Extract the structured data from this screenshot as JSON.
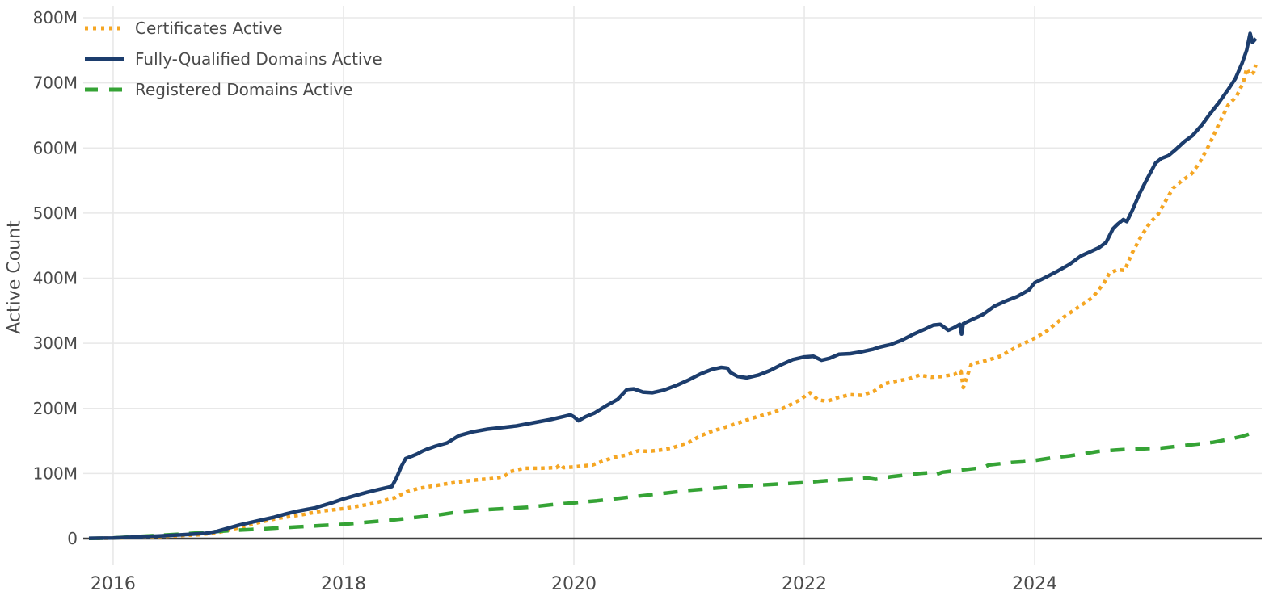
{
  "colors": {
    "background": "#ffffff",
    "gridline": "#e8e8e8",
    "axis_line": "#3d3d3d",
    "text": "#4a4a4a",
    "certificates": "#F5A623",
    "fqdn": "#1C3D6D",
    "registered": "#35A335"
  },
  "legend": {
    "position": "top-left",
    "items": [
      {
        "label": "Certificates Active",
        "swatch": "dotted-orange-line-icon"
      },
      {
        "label": "Fully-Qualified Domains Active",
        "swatch": "solid-navy-line-icon"
      },
      {
        "label": "Registered Domains Active",
        "swatch": "dashed-green-line-icon"
      }
    ]
  },
  "chart_data": {
    "type": "line",
    "title": "",
    "xlabel": "",
    "ylabel": "Active Count",
    "unit": "millions",
    "grid": true,
    "legend_position": "top-left",
    "xlim": [
      2015.79,
      2025.95
    ],
    "ylim": [
      0,
      800
    ],
    "x_ticks": {
      "values": [
        2016,
        2018,
        2020,
        2022,
        2024
      ],
      "labels": [
        "2016",
        "2018",
        "2020",
        "2022",
        "2024"
      ]
    },
    "y_ticks": {
      "values": [
        0,
        100,
        200,
        300,
        400,
        500,
        600,
        700,
        800
      ],
      "labels": [
        "0",
        "100M",
        "200M",
        "300M",
        "400M",
        "500M",
        "600M",
        "700M",
        "800M"
      ]
    },
    "series": [
      {
        "name": "Certificates Active",
        "color": "#F5A623",
        "style": "dotted",
        "points": [
          [
            2015.79,
            0.3
          ],
          [
            2016.0,
            0.8
          ],
          [
            2016.25,
            2
          ],
          [
            2016.5,
            4
          ],
          [
            2016.75,
            6
          ],
          [
            2016.9,
            9
          ],
          [
            2017.0,
            13
          ],
          [
            2017.1,
            17
          ],
          [
            2017.25,
            24
          ],
          [
            2017.4,
            30
          ],
          [
            2017.5,
            33
          ],
          [
            2017.65,
            37
          ],
          [
            2017.8,
            42
          ],
          [
            2017.9,
            44
          ],
          [
            2018.0,
            46
          ],
          [
            2018.1,
            49
          ],
          [
            2018.2,
            52
          ],
          [
            2018.3,
            56
          ],
          [
            2018.45,
            63
          ],
          [
            2018.55,
            72
          ],
          [
            2018.65,
            77
          ],
          [
            2018.75,
            80
          ],
          [
            2018.85,
            83
          ],
          [
            2019.0,
            87
          ],
          [
            2019.15,
            90
          ],
          [
            2019.28,
            92
          ],
          [
            2019.39,
            95
          ],
          [
            2019.45,
            103
          ],
          [
            2019.56,
            108
          ],
          [
            2019.7,
            108
          ],
          [
            2019.85,
            109
          ],
          [
            2019.88,
            114
          ],
          [
            2019.91,
            109
          ],
          [
            2020.0,
            110
          ],
          [
            2020.1,
            112
          ],
          [
            2020.16,
            113
          ],
          [
            2020.25,
            119
          ],
          [
            2020.35,
            125
          ],
          [
            2020.45,
            128
          ],
          [
            2020.56,
            135
          ],
          [
            2020.65,
            134
          ],
          [
            2020.75,
            136
          ],
          [
            2020.85,
            139
          ],
          [
            2021.0,
            148
          ],
          [
            2021.1,
            158
          ],
          [
            2021.2,
            165
          ],
          [
            2021.33,
            172
          ],
          [
            2021.45,
            179
          ],
          [
            2021.55,
            185
          ],
          [
            2021.65,
            190
          ],
          [
            2021.75,
            195
          ],
          [
            2021.85,
            203
          ],
          [
            2021.95,
            212
          ],
          [
            2022.05,
            224
          ],
          [
            2022.12,
            213
          ],
          [
            2022.2,
            211
          ],
          [
            2022.3,
            217
          ],
          [
            2022.4,
            221
          ],
          [
            2022.5,
            220
          ],
          [
            2022.6,
            226
          ],
          [
            2022.7,
            238
          ],
          [
            2022.8,
            242
          ],
          [
            2022.9,
            245
          ],
          [
            2023.0,
            251
          ],
          [
            2023.1,
            248
          ],
          [
            2023.2,
            249
          ],
          [
            2023.3,
            252
          ],
          [
            2023.36,
            257
          ],
          [
            2023.38,
            232
          ],
          [
            2023.45,
            268
          ],
          [
            2023.55,
            272
          ],
          [
            2023.7,
            280
          ],
          [
            2023.85,
            295
          ],
          [
            2024.0,
            308
          ],
          [
            2024.1,
            318
          ],
          [
            2024.25,
            340
          ],
          [
            2024.4,
            358
          ],
          [
            2024.5,
            370
          ],
          [
            2024.6,
            392
          ],
          [
            2024.65,
            408
          ],
          [
            2024.72,
            413
          ],
          [
            2024.78,
            412
          ],
          [
            2024.85,
            440
          ],
          [
            2024.92,
            463
          ],
          [
            2025.0,
            485
          ],
          [
            2025.07,
            498
          ],
          [
            2025.14,
            520
          ],
          [
            2025.2,
            538
          ],
          [
            2025.28,
            550
          ],
          [
            2025.36,
            560
          ],
          [
            2025.43,
            577
          ],
          [
            2025.5,
            600
          ],
          [
            2025.56,
            622
          ],
          [
            2025.62,
            645
          ],
          [
            2025.68,
            666
          ],
          [
            2025.75,
            679
          ],
          [
            2025.81,
            700
          ],
          [
            2025.84,
            722
          ],
          [
            2025.87,
            712
          ],
          [
            2025.9,
            716
          ],
          [
            2025.92,
            728
          ]
        ]
      },
      {
        "name": "Fully-Qualified Domains Active",
        "color": "#1C3D6D",
        "style": "solid",
        "points": [
          [
            2015.79,
            0.5
          ],
          [
            2016.0,
            1
          ],
          [
            2016.2,
            2.5
          ],
          [
            2016.4,
            4
          ],
          [
            2016.6,
            6
          ],
          [
            2016.8,
            8
          ],
          [
            2016.9,
            11
          ],
          [
            2017.0,
            16
          ],
          [
            2017.1,
            21
          ],
          [
            2017.25,
            27
          ],
          [
            2017.4,
            33
          ],
          [
            2017.5,
            38
          ],
          [
            2017.6,
            42
          ],
          [
            2017.75,
            47
          ],
          [
            2017.9,
            55
          ],
          [
            2018.0,
            61
          ],
          [
            2018.1,
            66
          ],
          [
            2018.2,
            71
          ],
          [
            2018.32,
            76
          ],
          [
            2018.42,
            80
          ],
          [
            2018.46,
            93
          ],
          [
            2018.5,
            110
          ],
          [
            2018.54,
            123
          ],
          [
            2018.6,
            127
          ],
          [
            2018.64,
            130
          ],
          [
            2018.68,
            134
          ],
          [
            2018.72,
            137
          ],
          [
            2018.8,
            142
          ],
          [
            2018.9,
            147
          ],
          [
            2019.0,
            158
          ],
          [
            2019.12,
            164
          ],
          [
            2019.25,
            168
          ],
          [
            2019.4,
            171
          ],
          [
            2019.5,
            173
          ],
          [
            2019.65,
            178
          ],
          [
            2019.8,
            183
          ],
          [
            2019.9,
            187
          ],
          [
            2019.97,
            190
          ],
          [
            2020.0,
            187
          ],
          [
            2020.04,
            181
          ],
          [
            2020.1,
            187
          ],
          [
            2020.18,
            193
          ],
          [
            2020.28,
            204
          ],
          [
            2020.38,
            214
          ],
          [
            2020.46,
            229
          ],
          [
            2020.52,
            230
          ],
          [
            2020.6,
            225
          ],
          [
            2020.68,
            224
          ],
          [
            2020.78,
            228
          ],
          [
            2020.9,
            236
          ],
          [
            2021.0,
            244
          ],
          [
            2021.1,
            253
          ],
          [
            2021.2,
            260
          ],
          [
            2021.28,
            263
          ],
          [
            2021.33,
            262
          ],
          [
            2021.36,
            255
          ],
          [
            2021.42,
            249
          ],
          [
            2021.5,
            247
          ],
          [
            2021.6,
            251
          ],
          [
            2021.7,
            258
          ],
          [
            2021.8,
            267
          ],
          [
            2021.9,
            275
          ],
          [
            2022.0,
            279
          ],
          [
            2022.08,
            280
          ],
          [
            2022.15,
            274
          ],
          [
            2022.22,
            277
          ],
          [
            2022.3,
            283
          ],
          [
            2022.4,
            284
          ],
          [
            2022.5,
            287
          ],
          [
            2022.6,
            291
          ],
          [
            2022.65,
            294
          ],
          [
            2022.75,
            298
          ],
          [
            2022.85,
            305
          ],
          [
            2022.95,
            314
          ],
          [
            2023.05,
            322
          ],
          [
            2023.12,
            328
          ],
          [
            2023.18,
            329
          ],
          [
            2023.25,
            320
          ],
          [
            2023.3,
            324
          ],
          [
            2023.35,
            329
          ],
          [
            2023.365,
            314
          ],
          [
            2023.38,
            330
          ],
          [
            2023.45,
            336
          ],
          [
            2023.55,
            344
          ],
          [
            2023.65,
            357
          ],
          [
            2023.75,
            365
          ],
          [
            2023.85,
            372
          ],
          [
            2023.95,
            382
          ],
          [
            2024.0,
            393
          ],
          [
            2024.08,
            400
          ],
          [
            2024.2,
            411
          ],
          [
            2024.3,
            421
          ],
          [
            2024.4,
            434
          ],
          [
            2024.5,
            442
          ],
          [
            2024.56,
            447
          ],
          [
            2024.62,
            455
          ],
          [
            2024.68,
            476
          ],
          [
            2024.72,
            483
          ],
          [
            2024.77,
            490
          ],
          [
            2024.8,
            487
          ],
          [
            2024.85,
            505
          ],
          [
            2024.91,
            530
          ],
          [
            2024.98,
            554
          ],
          [
            2025.05,
            577
          ],
          [
            2025.1,
            584
          ],
          [
            2025.16,
            588
          ],
          [
            2025.22,
            597
          ],
          [
            2025.3,
            610
          ],
          [
            2025.37,
            619
          ],
          [
            2025.45,
            635
          ],
          [
            2025.52,
            652
          ],
          [
            2025.6,
            670
          ],
          [
            2025.68,
            690
          ],
          [
            2025.74,
            706
          ],
          [
            2025.8,
            730
          ],
          [
            2025.84,
            750
          ],
          [
            2025.87,
            776
          ],
          [
            2025.89,
            762
          ],
          [
            2025.92,
            768
          ]
        ]
      },
      {
        "name": "Registered Domains Active",
        "color": "#35A335",
        "style": "dashed",
        "points": [
          [
            2015.79,
            0.3
          ],
          [
            2016.0,
            1
          ],
          [
            2016.2,
            3
          ],
          [
            2016.4,
            5
          ],
          [
            2016.6,
            7
          ],
          [
            2016.8,
            9.5
          ],
          [
            2017.0,
            12
          ],
          [
            2017.2,
            14
          ],
          [
            2017.4,
            16
          ],
          [
            2017.6,
            18
          ],
          [
            2017.8,
            20
          ],
          [
            2018.0,
            22
          ],
          [
            2018.2,
            25
          ],
          [
            2018.4,
            28
          ],
          [
            2018.55,
            31
          ],
          [
            2018.7,
            34
          ],
          [
            2018.85,
            37
          ],
          [
            2019.0,
            41
          ],
          [
            2019.2,
            44
          ],
          [
            2019.4,
            46
          ],
          [
            2019.6,
            48
          ],
          [
            2019.8,
            52
          ],
          [
            2020.0,
            55
          ],
          [
            2020.2,
            58
          ],
          [
            2020.4,
            62
          ],
          [
            2020.6,
            66
          ],
          [
            2020.8,
            70
          ],
          [
            2021.0,
            74
          ],
          [
            2021.2,
            77
          ],
          [
            2021.4,
            80
          ],
          [
            2021.6,
            82
          ],
          [
            2021.8,
            84
          ],
          [
            2022.0,
            86
          ],
          [
            2022.2,
            89
          ],
          [
            2022.4,
            91
          ],
          [
            2022.55,
            93
          ],
          [
            2022.62,
            91
          ],
          [
            2022.75,
            95
          ],
          [
            2022.9,
            98
          ],
          [
            2023.0,
            100
          ],
          [
            2023.07,
            101
          ],
          [
            2023.12,
            97
          ],
          [
            2023.2,
            102
          ],
          [
            2023.3,
            104
          ],
          [
            2023.45,
            107
          ],
          [
            2023.55,
            109
          ],
          [
            2023.6,
            113
          ],
          [
            2023.7,
            115
          ],
          [
            2023.8,
            117
          ],
          [
            2023.9,
            118
          ],
          [
            2024.0,
            120
          ],
          [
            2024.15,
            124
          ],
          [
            2024.3,
            127
          ],
          [
            2024.45,
            131
          ],
          [
            2024.55,
            134
          ],
          [
            2024.7,
            136
          ],
          [
            2024.8,
            137
          ],
          [
            2024.95,
            138
          ],
          [
            2025.1,
            139
          ],
          [
            2025.25,
            142
          ],
          [
            2025.4,
            145
          ],
          [
            2025.55,
            148
          ],
          [
            2025.7,
            153
          ],
          [
            2025.8,
            157
          ],
          [
            2025.87,
            161
          ],
          [
            2025.92,
            167
          ]
        ]
      }
    ]
  }
}
